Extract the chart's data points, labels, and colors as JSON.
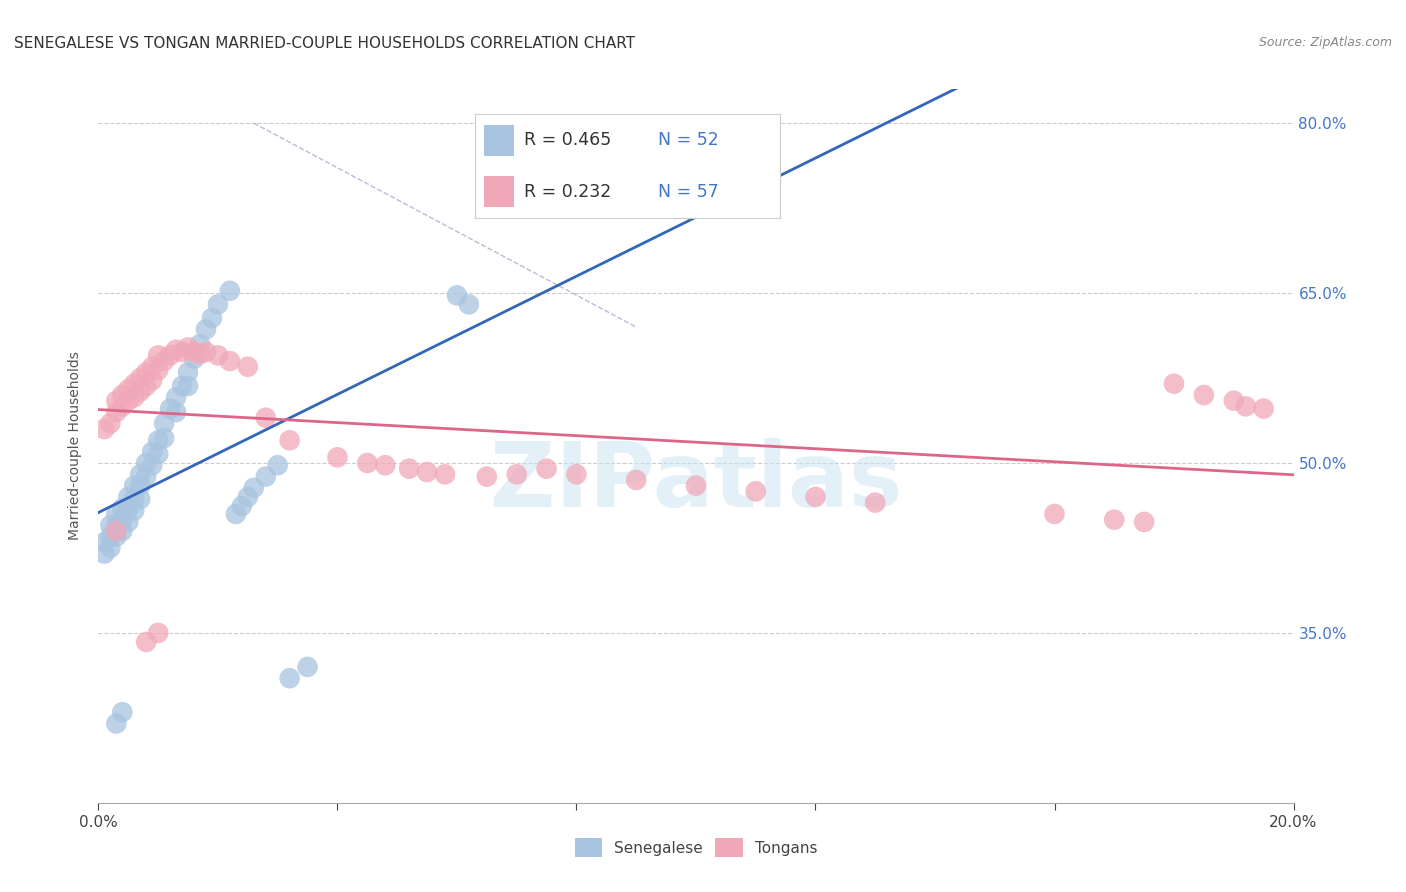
{
  "title": "SENEGALESE VS TONGAN MARRIED-COUPLE HOUSEHOLDS CORRELATION CHART",
  "source": "Source: ZipAtlas.com",
  "ylabel": "Married-couple Households",
  "xlim": [
    0.0,
    0.2
  ],
  "ylim": [
    0.2,
    0.83
  ],
  "xtick_positions": [
    0.0,
    0.04,
    0.08,
    0.12,
    0.16,
    0.2
  ],
  "xtick_labels": [
    "0.0%",
    "",
    "",
    "",
    "",
    "20.0%"
  ],
  "ytick_positions": [
    0.35,
    0.5,
    0.65,
    0.8
  ],
  "ytick_labels": [
    "35.0%",
    "50.0%",
    "65.0%",
    "80.0%"
  ],
  "background_color": "#ffffff",
  "grid_color": "#cccccc",
  "watermark": "ZIPatlas",
  "senegalese_color": "#a8c4e0",
  "tongan_color": "#f0a8b8",
  "senegalese_line_color": "#3366bb",
  "tongan_line_color": "#dd6688",
  "diagonal_line_color": "#bbbbcc",
  "tick_color": "#4477cc",
  "title_fontsize": 11,
  "label_fontsize": 10,
  "tick_fontsize": 11,
  "legend_text_color": "#4477cc",
  "legend_r_color": "#333333",
  "sen_x": [
    0.001,
    0.001,
    0.002,
    0.002,
    0.002,
    0.003,
    0.003,
    0.003,
    0.004,
    0.004,
    0.004,
    0.005,
    0.005,
    0.005,
    0.006,
    0.006,
    0.006,
    0.007,
    0.007,
    0.007,
    0.008,
    0.008,
    0.009,
    0.009,
    0.01,
    0.01,
    0.011,
    0.011,
    0.012,
    0.013,
    0.013,
    0.014,
    0.015,
    0.015,
    0.016,
    0.017,
    0.018,
    0.019,
    0.02,
    0.022,
    0.023,
    0.024,
    0.025,
    0.026,
    0.028,
    0.03,
    0.032,
    0.035,
    0.06,
    0.062,
    0.003,
    0.004
  ],
  "sen_y": [
    0.43,
    0.42,
    0.445,
    0.435,
    0.425,
    0.455,
    0.445,
    0.435,
    0.46,
    0.45,
    0.44,
    0.47,
    0.46,
    0.448,
    0.48,
    0.468,
    0.458,
    0.49,
    0.48,
    0.468,
    0.5,
    0.488,
    0.51,
    0.498,
    0.52,
    0.508,
    0.535,
    0.522,
    0.548,
    0.558,
    0.545,
    0.568,
    0.58,
    0.568,
    0.592,
    0.605,
    0.618,
    0.628,
    0.64,
    0.652,
    0.455,
    0.462,
    0.47,
    0.478,
    0.488,
    0.498,
    0.31,
    0.32,
    0.648,
    0.64,
    0.27,
    0.28
  ],
  "ton_x": [
    0.001,
    0.002,
    0.003,
    0.003,
    0.004,
    0.004,
    0.005,
    0.005,
    0.006,
    0.006,
    0.007,
    0.007,
    0.008,
    0.008,
    0.009,
    0.009,
    0.01,
    0.01,
    0.011,
    0.012,
    0.013,
    0.014,
    0.015,
    0.016,
    0.017,
    0.018,
    0.02,
    0.022,
    0.025,
    0.028,
    0.032,
    0.04,
    0.045,
    0.048,
    0.052,
    0.055,
    0.058,
    0.065,
    0.07,
    0.075,
    0.08,
    0.09,
    0.1,
    0.11,
    0.12,
    0.13,
    0.16,
    0.17,
    0.175,
    0.18,
    0.185,
    0.19,
    0.192,
    0.195,
    0.003,
    0.008,
    0.01
  ],
  "ton_y": [
    0.53,
    0.535,
    0.555,
    0.545,
    0.56,
    0.55,
    0.565,
    0.555,
    0.57,
    0.558,
    0.575,
    0.563,
    0.58,
    0.568,
    0.585,
    0.573,
    0.595,
    0.582,
    0.59,
    0.595,
    0.6,
    0.598,
    0.602,
    0.598,
    0.596,
    0.598,
    0.595,
    0.59,
    0.585,
    0.54,
    0.52,
    0.505,
    0.5,
    0.498,
    0.495,
    0.492,
    0.49,
    0.488,
    0.49,
    0.495,
    0.49,
    0.485,
    0.48,
    0.475,
    0.47,
    0.465,
    0.455,
    0.45,
    0.448,
    0.57,
    0.56,
    0.555,
    0.55,
    0.548,
    0.44,
    0.342,
    0.35
  ]
}
